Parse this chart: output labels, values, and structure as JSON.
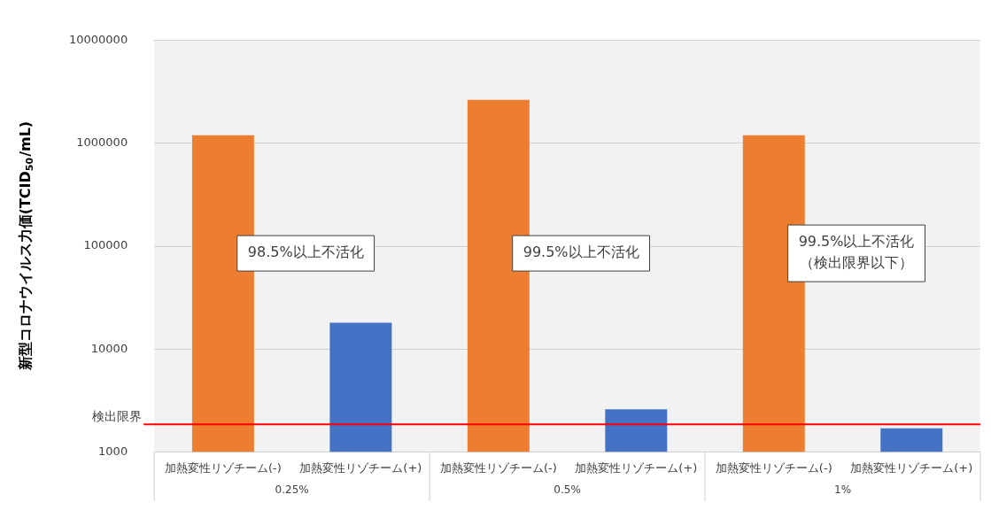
{
  "chart_data": {
    "type": "bar",
    "ylabel": "新型コロナウイルス力価(TCID$_{50}$/mL)",
    "categories": [
      "加熱変性リゾチーム(-)",
      "加熱変性リゾチーム(+)",
      "加熱変性リゾチーム(-)",
      "加熱変性リゾチーム(+)",
      "加熱変性リゾチーム(-)",
      "加熱変性リゾチーム(+)"
    ],
    "values": [
      1200000,
      18000,
      2650000,
      2600,
      1200000,
      1700
    ],
    "colors": [
      "#ed7d31",
      "#4472c4",
      "#ed7d31",
      "#4472c4",
      "#ed7d31",
      "#4472c4"
    ],
    "log": "y",
    "ylim": [
      1000,
      10000000
    ],
    "yticks": [
      1000,
      10000,
      100000,
      1000000,
      10000000
    ],
    "grid": "y",
    "legend": false,
    "ref_lines": [
      {
        "axis": "y",
        "value": 1850,
        "label": "検出限界",
        "color": "#ff0000"
      }
    ],
    "annotations": [
      "98.5%以上不活化",
      "99.5%以上不活化",
      "99.5%以上不活化（検出限界以下）",
      "0.25%",
      "0.5%",
      "1%"
    ]
  }
}
